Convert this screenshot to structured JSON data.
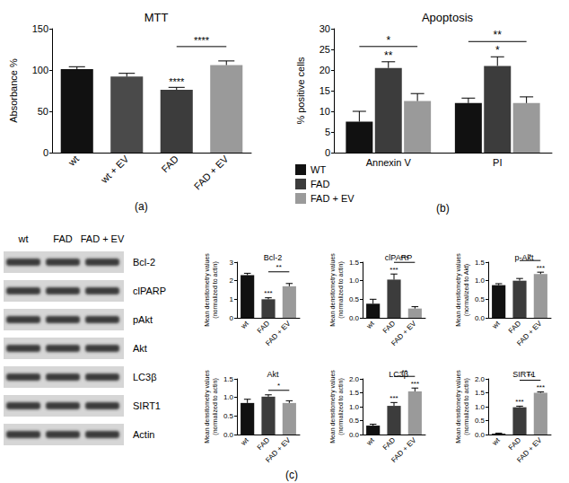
{
  "chart_data": [
    {
      "type": "bar",
      "caption": "(a)",
      "title": "MTT",
      "y_label": "Absorbance %",
      "categories": [
        "wt",
        "wt + EV",
        "FAD",
        "FAD + EV"
      ],
      "values": [
        101,
        92,
        76,
        106
      ],
      "errors": [
        3,
        4,
        3,
        5
      ],
      "colors": [
        "#111111",
        "#4a4a4a",
        "#3c3c3c",
        "#9a9a9a"
      ],
      "ylim": [
        0,
        150
      ],
      "yticks": [
        0,
        50,
        100,
        150
      ],
      "grid": false,
      "significance": [
        {
          "label": "****",
          "bars": [
            "FAD"
          ]
        },
        {
          "label": "****",
          "bars": [
            "FAD",
            "FAD + EV"
          ]
        }
      ]
    },
    {
      "type": "bar",
      "caption": "(b)",
      "title": "Apoptosis",
      "y_label": "% positive cells",
      "categories": [
        "Annexin V",
        "PI"
      ],
      "series": [
        {
          "name": "WT",
          "color": "#111111",
          "values": [
            7.5,
            12
          ],
          "errors": [
            2.5,
            1.2
          ]
        },
        {
          "name": "FAD",
          "color": "#3c3c3c",
          "values": [
            20.5,
            21
          ],
          "errors": [
            1.5,
            2.2
          ]
        },
        {
          "name": "FAD + EV",
          "color": "#9a9a9a",
          "values": [
            12.5,
            12
          ],
          "errors": [
            1.8,
            1.5
          ]
        }
      ],
      "ylim": [
        0,
        30
      ],
      "yticks": [
        0,
        5,
        10,
        15,
        20,
        25,
        30
      ],
      "grid": false,
      "legend": "bottom-left",
      "significance": [
        {
          "label": "**",
          "group": "Annexin V",
          "bars": [
            "FAD"
          ]
        },
        {
          "label": "*",
          "group": "PI",
          "bars": [
            "FAD"
          ]
        },
        {
          "label": "*",
          "group": "Annexin V",
          "bars": [
            "WT",
            "FAD + EV"
          ]
        },
        {
          "label": "**",
          "group": "PI",
          "bars": [
            "WT",
            "FAD + EV"
          ]
        }
      ]
    },
    {
      "type": "bar",
      "title": "Bcl-2",
      "y_label": "Mean densitometry values\n(normalized to actin)",
      "categories": [
        "wt",
        "FAD",
        "FAD + EV"
      ],
      "values": [
        2.3,
        1.0,
        1.7
      ],
      "errors": [
        0.1,
        0.08,
        0.15
      ],
      "colors": [
        "#111111",
        "#3c3c3c",
        "#9a9a9a"
      ],
      "ylim": [
        0,
        3
      ],
      "yticks": [
        0,
        1,
        2,
        3
      ],
      "grid": false,
      "significance": [
        {
          "label": "***",
          "bars": [
            "FAD"
          ]
        },
        {
          "label": "**",
          "bars": [
            "FAD",
            "FAD + EV"
          ]
        }
      ]
    },
    {
      "type": "bar",
      "title": "clPARP",
      "y_label": "Mean densitometry values\n(normalized to actin)",
      "categories": [
        "wt",
        "FAD",
        "FAD + EV"
      ],
      "values": [
        0.38,
        1.03,
        0.25
      ],
      "errors": [
        0.12,
        0.15,
        0.05
      ],
      "colors": [
        "#111111",
        "#3c3c3c",
        "#9a9a9a"
      ],
      "ylim": [
        0,
        1.5
      ],
      "yticks": [
        {
          "value": 0,
          "label": "0.0"
        },
        0.5,
        {
          "value": 1,
          "label": "1.0"
        },
        1.5
      ],
      "grid": false,
      "significance": [
        {
          "label": "***",
          "bars": [
            "FAD"
          ]
        },
        {
          "label": "***",
          "bars": [
            "FAD",
            "FAD + EV"
          ]
        }
      ]
    },
    {
      "type": "bar",
      "title": "p-Akt",
      "y_label": "Mean densitometry values\n(normalized to Akt)",
      "categories": [
        "wt",
        "FAD",
        "FAD + EV"
      ],
      "values": [
        0.88,
        1.0,
        1.18
      ],
      "errors": [
        0.04,
        0.06,
        0.05
      ],
      "colors": [
        "#111111",
        "#3c3c3c",
        "#9a9a9a"
      ],
      "ylim": [
        0,
        1.5
      ],
      "yticks": [
        {
          "value": 0,
          "label": "0.0"
        },
        0.5,
        {
          "value": 1,
          "label": "1.0"
        },
        1.5
      ],
      "grid": false,
      "significance": [
        {
          "label": "***",
          "bars": [
            "FAD + EV"
          ]
        },
        {
          "label": "*",
          "bars": [
            "FAD",
            "FAD + EV"
          ]
        }
      ]
    },
    {
      "type": "bar",
      "title": "Akt",
      "y_label": "Mean densitometry values\n(normalized to actin)",
      "categories": [
        "wt",
        "FAD",
        "FAD + EV"
      ],
      "values": [
        0.85,
        1.02,
        0.85
      ],
      "errors": [
        0.1,
        0.05,
        0.06
      ],
      "colors": [
        "#111111",
        "#3c3c3c",
        "#9a9a9a"
      ],
      "ylim": [
        0,
        1.5
      ],
      "yticks": [
        {
          "value": 0,
          "label": "0.0"
        },
        0.5,
        {
          "value": 1,
          "label": "1.0"
        },
        1.5
      ],
      "grid": false,
      "significance": [
        {
          "label": "*",
          "bars": [
            "FAD",
            "FAD + EV"
          ]
        }
      ]
    },
    {
      "type": "bar",
      "title": "LC3β",
      "y_label": "Mean densitometry values\n(normalized to actin)",
      "categories": [
        "wt",
        "FAD",
        "FAD + EV"
      ],
      "values": [
        0.32,
        1.03,
        1.55
      ],
      "errors": [
        0.05,
        0.12,
        0.12
      ],
      "colors": [
        "#111111",
        "#3c3c3c",
        "#9a9a9a"
      ],
      "ylim": [
        0,
        2
      ],
      "yticks": [
        {
          "value": 0,
          "label": "0.0"
        },
        0.5,
        {
          "value": 1,
          "label": "1.0"
        },
        1.5,
        {
          "value": 2,
          "label": "2.0"
        }
      ],
      "grid": false,
      "significance": [
        {
          "label": "***",
          "bars": [
            "FAD"
          ]
        },
        {
          "label": "***",
          "bars": [
            "FAD + EV"
          ]
        },
        {
          "label": "**",
          "bars": [
            "FAD",
            "FAD + EV"
          ]
        }
      ]
    },
    {
      "type": "bar",
      "title": "SIRT1",
      "y_label": "Mean densitometry values\n(normalized to actin)",
      "categories": [
        "wt",
        "FAD",
        "FAD + EV"
      ],
      "values": [
        0.03,
        0.98,
        1.5
      ],
      "errors": [
        0.02,
        0.04,
        0.03
      ],
      "colors": [
        "#111111",
        "#3c3c3c",
        "#9a9a9a"
      ],
      "ylim": [
        0,
        2
      ],
      "yticks": [
        {
          "value": 0,
          "label": "0.0"
        },
        0.5,
        {
          "value": 1,
          "label": "1.0"
        },
        1.5,
        {
          "value": 2,
          "label": "2.0"
        }
      ],
      "grid": false,
      "significance": [
        {
          "label": "***",
          "bars": [
            "FAD"
          ]
        },
        {
          "label": "***",
          "bars": [
            "FAD + EV"
          ]
        },
        {
          "label": "**",
          "bars": [
            "FAD",
            "FAD + EV"
          ]
        }
      ]
    }
  ],
  "blot": {
    "caption": "(c)",
    "lanes": [
      "wt",
      "FAD",
      "FAD + EV"
    ],
    "proteins": [
      "Bcl-2",
      "clPARP",
      "pAkt",
      "Akt",
      "LC3β",
      "SIRT1",
      "Actin"
    ]
  }
}
